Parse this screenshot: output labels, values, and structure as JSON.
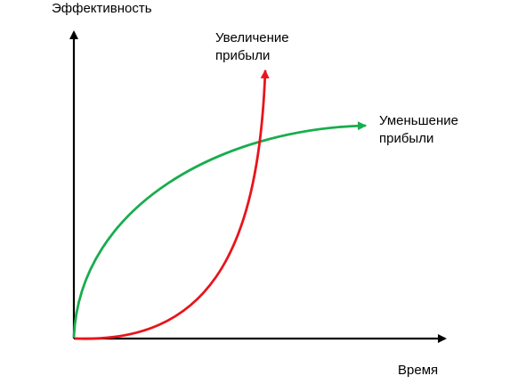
{
  "chart_data": {
    "type": "line",
    "ylabel": "Эффективность",
    "xlabel": "Время",
    "grid": false,
    "legend": "none",
    "axes_ticks": false,
    "series": [
      {
        "name": "Увеличение прибыли",
        "label_lines": [
          "Увеличение",
          "прибыли"
        ],
        "color": "#e8141c",
        "shape": "convex rising curve, slow start then steep growth"
      },
      {
        "name": "Уменьшение прибыли",
        "label_lines": [
          "Уменьшение",
          "прибыли"
        ],
        "color": "#18ad4e",
        "shape": "concave rising curve, fast start then flattening"
      }
    ]
  },
  "axis_color": "#000000"
}
